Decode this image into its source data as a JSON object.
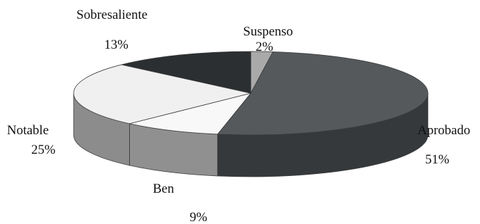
{
  "chart_data": {
    "type": "pie",
    "title": "",
    "style": "3d-exploded-none",
    "categories": [
      "Suspenso",
      "Aprobado",
      "Ben",
      "Notable",
      "Sobresaliente"
    ],
    "values": [
      2,
      51,
      9,
      25,
      13
    ],
    "value_labels": [
      "2%",
      "51%",
      "9%",
      "25%",
      "13%"
    ],
    "colors": [
      "#a9a9a9",
      "#55595c",
      "#f8f8f8",
      "#f0f0f0",
      "#2b2f31"
    ],
    "side_colors": [
      "#7d7d7d",
      "#35393b",
      "#909090",
      "#8c8c8c",
      "#1c1f20"
    ],
    "start_angle_deg": -90,
    "direction": "clockwise",
    "legend": "none"
  }
}
